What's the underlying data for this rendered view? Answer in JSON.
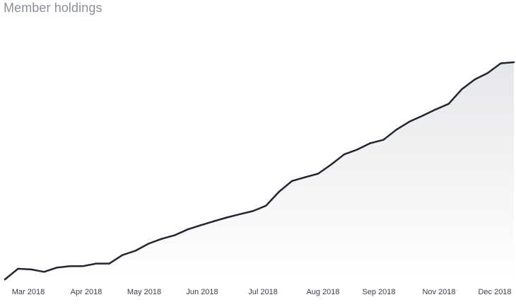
{
  "chart_data": {
    "type": "area",
    "title": "Member holdings",
    "xlabel": "",
    "ylabel": "",
    "grid": false,
    "legend": "none",
    "x_tick_labels": [
      "Mar 2018",
      "Apr 2018",
      "May 2018",
      "Jun 2018",
      "Jul 2018",
      "Aug 2018",
      "Sep 2018",
      "Nov 2018",
      "Dec 2018"
    ],
    "series": [
      {
        "values": [
          0,
          6.2,
          5.8,
          4.4,
          6.9,
          7.7,
          7.7,
          9.2,
          9.2,
          14.1,
          16.6,
          20.7,
          23.5,
          25.6,
          29.0,
          31.4,
          33.7,
          35.9,
          37.8,
          39.6,
          42.7,
          50.8,
          57.1,
          59.2,
          61.3,
          66.6,
          72.5,
          75.3,
          79.0,
          80.9,
          86.8,
          91.5,
          94.9,
          98.5,
          101.8,
          110.2,
          115.9,
          119.7,
          125.3,
          125.9
        ]
      }
    ],
    "colors": {
      "line": "#23262e",
      "fill_top": "#e6e7ea",
      "fill_bottom": "#ffffff",
      "title": "#8a8f98",
      "tick_text": "#3c4048"
    }
  }
}
